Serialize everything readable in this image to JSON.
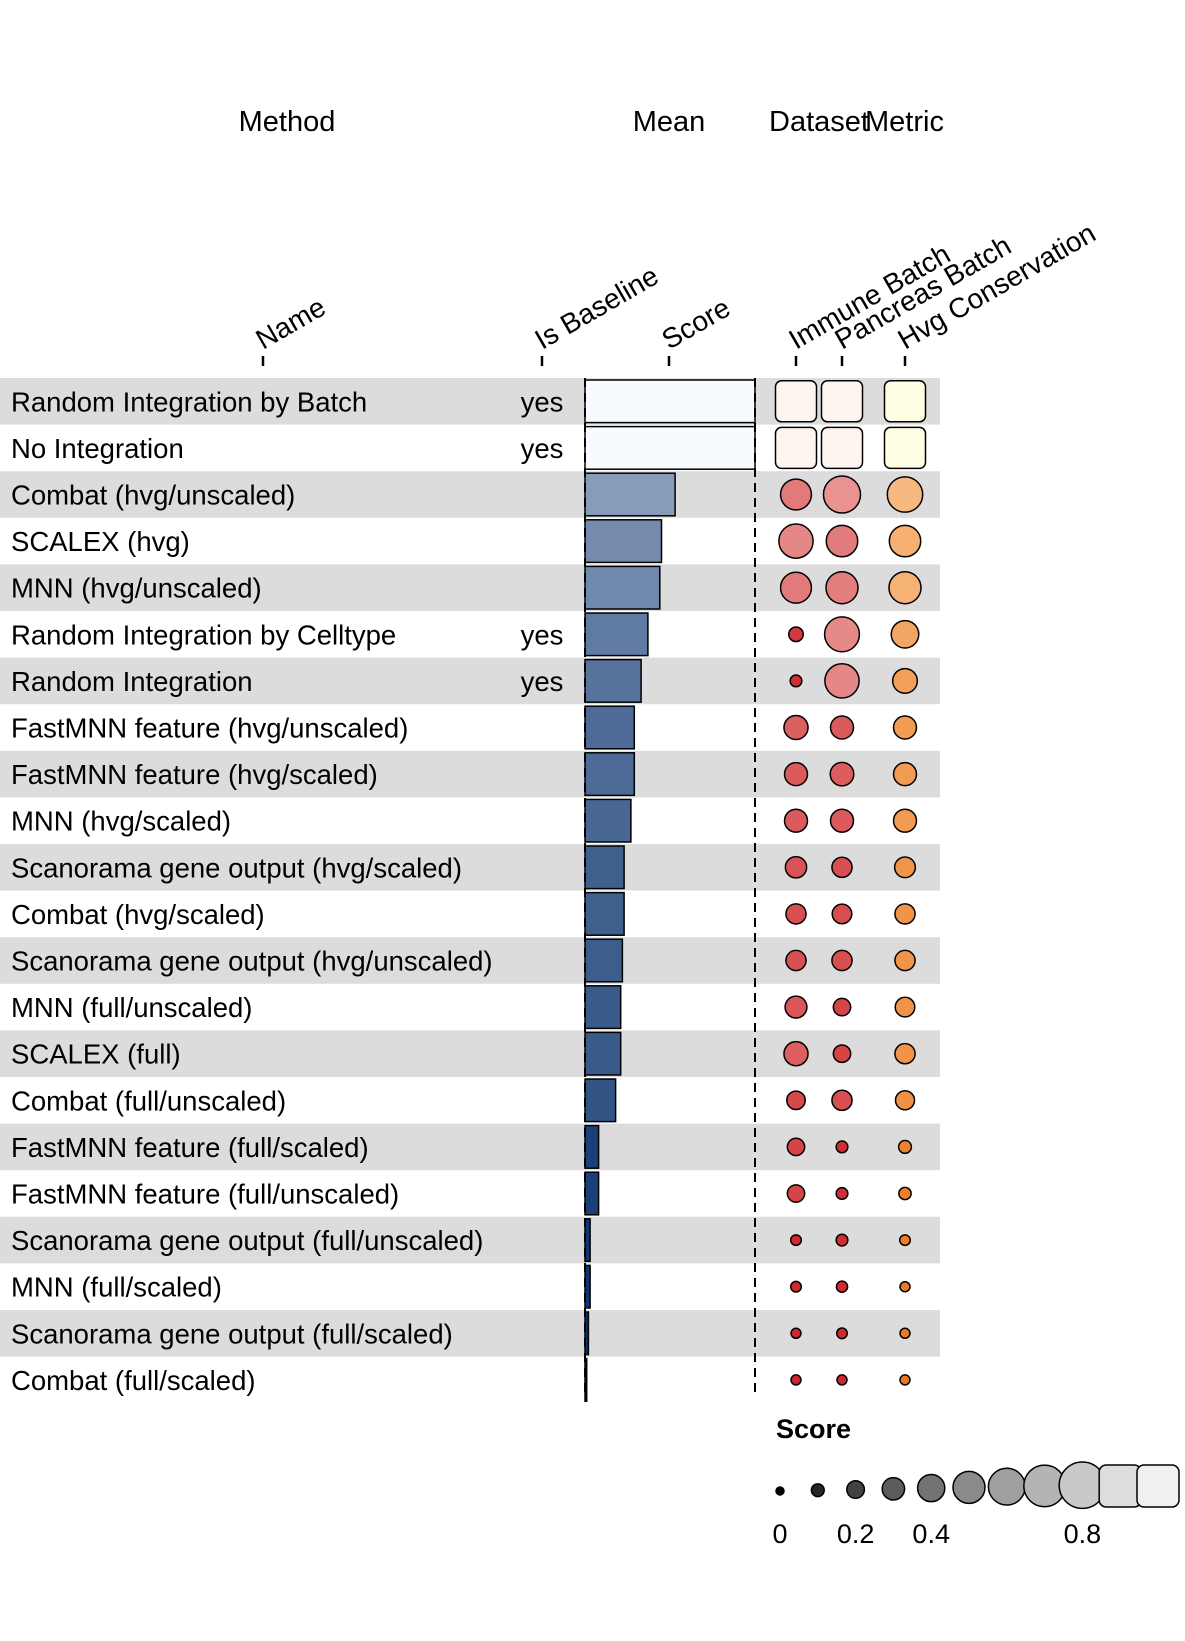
{
  "colors": {
    "stripe": "#dcdcdc",
    "blues_light": "#f7fbff",
    "blues_dark": "#08306b",
    "reds_light": "#fff5f0",
    "reds_dark": "#cb181d",
    "oranges_light": "#ffffe5",
    "oranges_dark": "#ec7014",
    "legend_light": "#f0f0f0",
    "legend_dark": "#000000"
  },
  "groups": [
    "Method",
    "Mean",
    "Dataset",
    "Metric"
  ],
  "columns": {
    "name": "Name",
    "is_baseline": "Is Baseline",
    "score": "Score",
    "immune": "Immune Batch",
    "pancreas": "Pancreas Batch",
    "hvg": "Hvg Conservation"
  },
  "legend": {
    "title": "Score",
    "shape_values": [
      0,
      0.1,
      0.2,
      0.3,
      0.4,
      0.5,
      0.6,
      0.7,
      0.8,
      0.9,
      1.0
    ],
    "tick_labels": [
      "0",
      "0.2",
      "0.4",
      "0.8"
    ],
    "tick_values": [
      0,
      0.2,
      0.4,
      0.8
    ]
  },
  "chart_data": {
    "type": "table",
    "title": "",
    "columns": [
      "Name",
      "Is Baseline",
      "Mean Score",
      "Immune Batch",
      "Pancreas Batch",
      "Hvg Conservation"
    ],
    "rows": [
      {
        "name": "Random Integration by Batch",
        "baseline": "yes",
        "mean": 1.0,
        "immune": 1.0,
        "pancreas": 1.0,
        "hvg": 1.0
      },
      {
        "name": "No Integration",
        "baseline": "yes",
        "mean": 1.0,
        "immune": 1.0,
        "pancreas": 1.0,
        "hvg": 1.0
      },
      {
        "name": "Combat (hvg/unscaled)",
        "baseline": "",
        "mean": 0.53,
        "immune": 0.44,
        "pancreas": 0.55,
        "hvg": 0.52
      },
      {
        "name": "SCALEX (hvg)",
        "baseline": "",
        "mean": 0.45,
        "immune": 0.5,
        "pancreas": 0.45,
        "hvg": 0.45
      },
      {
        "name": "MNN (hvg/unscaled)",
        "baseline": "",
        "mean": 0.44,
        "immune": 0.44,
        "pancreas": 0.46,
        "hvg": 0.46
      },
      {
        "name": "Random Integration by Celltype",
        "baseline": "yes",
        "mean": 0.37,
        "immune": 0.15,
        "pancreas": 0.51,
        "hvg": 0.38
      },
      {
        "name": "Random Integration",
        "baseline": "yes",
        "mean": 0.33,
        "immune": 0.1,
        "pancreas": 0.5,
        "hvg": 0.33
      },
      {
        "name": "FastMNN feature (hvg/unscaled)",
        "baseline": "",
        "mean": 0.29,
        "immune": 0.32,
        "pancreas": 0.3,
        "hvg": 0.3
      },
      {
        "name": "FastMNN feature (hvg/scaled)",
        "baseline": "",
        "mean": 0.29,
        "immune": 0.3,
        "pancreas": 0.31,
        "hvg": 0.3
      },
      {
        "name": "MNN (hvg/scaled)",
        "baseline": "",
        "mean": 0.27,
        "immune": 0.3,
        "pancreas": 0.3,
        "hvg": 0.3
      },
      {
        "name": "Scanorama gene output (hvg/scaled)",
        "baseline": "",
        "mean": 0.23,
        "immune": 0.27,
        "pancreas": 0.25,
        "hvg": 0.26
      },
      {
        "name": "Combat (hvg/scaled)",
        "baseline": "",
        "mean": 0.23,
        "immune": 0.25,
        "pancreas": 0.24,
        "hvg": 0.25
      },
      {
        "name": "Scanorama gene output (hvg/unscaled)",
        "baseline": "",
        "mean": 0.22,
        "immune": 0.25,
        "pancreas": 0.25,
        "hvg": 0.25
      },
      {
        "name": "MNN (full/unscaled)",
        "baseline": "",
        "mean": 0.21,
        "immune": 0.28,
        "pancreas": 0.2,
        "hvg": 0.24
      },
      {
        "name": "SCALEX (full)",
        "baseline": "",
        "mean": 0.21,
        "immune": 0.32,
        "pancreas": 0.2,
        "hvg": 0.25
      },
      {
        "name": "Combat (full/unscaled)",
        "baseline": "",
        "mean": 0.18,
        "immune": 0.22,
        "pancreas": 0.25,
        "hvg": 0.23
      },
      {
        "name": "FastMNN feature (full/scaled)",
        "baseline": "",
        "mean": 0.08,
        "immune": 0.2,
        "pancreas": 0.1,
        "hvg": 0.12
      },
      {
        "name": "FastMNN feature (full/unscaled)",
        "baseline": "",
        "mean": 0.08,
        "immune": 0.2,
        "pancreas": 0.1,
        "hvg": 0.11
      },
      {
        "name": "Scanorama gene output (full/unscaled)",
        "baseline": "",
        "mean": 0.03,
        "immune": 0.08,
        "pancreas": 0.1,
        "hvg": 0.08
      },
      {
        "name": "MNN (full/scaled)",
        "baseline": "",
        "mean": 0.03,
        "immune": 0.08,
        "pancreas": 0.09,
        "hvg": 0.07
      },
      {
        "name": "Scanorama gene output (full/scaled)",
        "baseline": "",
        "mean": 0.02,
        "immune": 0.07,
        "pancreas": 0.08,
        "hvg": 0.07
      },
      {
        "name": "Combat (full/scaled)",
        "baseline": "",
        "mean": 0.01,
        "immune": 0.07,
        "pancreas": 0.07,
        "hvg": 0.07
      }
    ]
  }
}
